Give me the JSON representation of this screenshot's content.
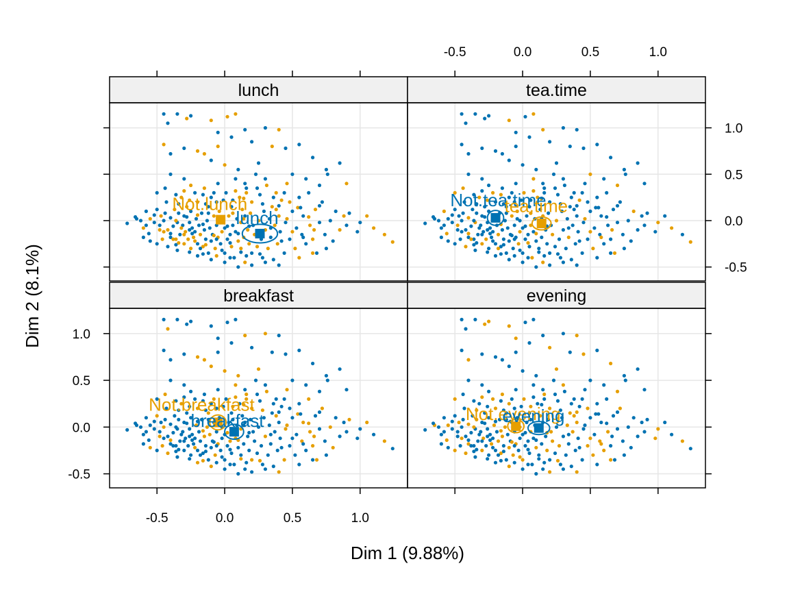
{
  "chart_data": {
    "type": "scatter",
    "xlabel": "Dim 1 (9.88%)",
    "ylabel": "Dim 2 (8.1%)",
    "xlim": [
      -0.85,
      1.35
    ],
    "ylim": [
      -0.65,
      1.27
    ],
    "x_ticks": [
      -0.5,
      0.0,
      0.5,
      1.0
    ],
    "x_tick_labels": [
      "-0.5",
      "0.0",
      "0.5",
      "1.0"
    ],
    "y_ticks": [
      -0.5,
      0.0,
      0.5,
      1.0
    ],
    "y_tick_labels": [
      "-0.5",
      "0.0",
      "0.5",
      "1.0"
    ],
    "grid": true,
    "layout": "2x2 lattice panels",
    "colors": {
      "yes": "#0072b2",
      "no": "#e69f00"
    },
    "panels": [
      {
        "name": "lunch",
        "position": "top-left",
        "categories": [
          {
            "label": "Not.lunch",
            "color": "#e69f00",
            "x": -0.03,
            "y": 0.01,
            "ellipse_rx": 0.03,
            "ellipse_ry": 0.04,
            "label_dx": -0.08,
            "label_dy": 0.17
          },
          {
            "label": "lunch",
            "color": "#0072b2",
            "x": 0.26,
            "y": -0.14,
            "ellipse_rx": 0.13,
            "ellipse_ry": 0.1,
            "label_dx": -0.02,
            "label_dy": 0.17
          }
        ],
        "yes_fraction": 0.14
      },
      {
        "name": "tea.time",
        "position": "top-right",
        "categories": [
          {
            "label": "Not.tea.time",
            "color": "#0072b2",
            "x": -0.2,
            "y": 0.03,
            "ellipse_rx": 0.06,
            "ellipse_ry": 0.08,
            "label_dx": 0.02,
            "label_dy": 0.19
          },
          {
            "label": "tea.time",
            "color": "#e69f00",
            "x": 0.14,
            "y": -0.03,
            "ellipse_rx": 0.07,
            "ellipse_ry": 0.07,
            "label_dx": -0.04,
            "label_dy": 0.19
          }
        ],
        "yes_fraction": 0.58
      },
      {
        "name": "breakfast",
        "position": "bottom-left",
        "categories": [
          {
            "label": "Not.breakfast",
            "color": "#e69f00",
            "x": -0.05,
            "y": 0.05,
            "ellipse_rx": 0.06,
            "ellipse_ry": 0.08,
            "label_dx": -0.12,
            "label_dy": 0.19
          },
          {
            "label": "breakfast",
            "color": "#0072b2",
            "x": 0.07,
            "y": -0.05,
            "ellipse_rx": 0.07,
            "ellipse_ry": 0.08,
            "label_dx": -0.05,
            "label_dy": 0.12
          }
        ],
        "yes_fraction": 0.45
      },
      {
        "name": "evening",
        "position": "bottom-right",
        "categories": [
          {
            "label": "Not.evening",
            "color": "#e69f00",
            "x": -0.05,
            "y": 0.01,
            "ellipse_rx": 0.06,
            "ellipse_ry": 0.07,
            "label_dx": -0.02,
            "label_dy": 0.13
          },
          {
            "label": "evening",
            "color": "#0072b2",
            "x": 0.12,
            "y": -0.01,
            "ellipse_rx": 0.08,
            "ellipse_ry": 0.07,
            "label_dx": -0.04,
            "label_dy": 0.13
          }
        ],
        "yes_fraction": 0.4
      }
    ],
    "points": [
      [
        -0.72,
        -0.03
      ],
      [
        -0.65,
        0.02
      ],
      [
        -0.6,
        -0.08
      ],
      [
        -0.58,
        0.1
      ],
      [
        -0.55,
        0.02
      ],
      [
        -0.52,
        -0.02
      ],
      [
        -0.5,
        0.12
      ],
      [
        -0.48,
        -0.05
      ],
      [
        -0.47,
        0.05
      ],
      [
        -0.45,
        -0.12
      ],
      [
        -0.45,
        0.0
      ],
      [
        -0.43,
        0.2
      ],
      [
        -0.42,
        -0.1
      ],
      [
        -0.4,
        0.03
      ],
      [
        -0.4,
        -0.18
      ],
      [
        -0.38,
        -0.06
      ],
      [
        -0.37,
        0.12
      ],
      [
        -0.36,
        -0.2
      ],
      [
        -0.35,
        -0.02
      ],
      [
        -0.34,
        0.08
      ],
      [
        -0.33,
        -0.15
      ],
      [
        -0.32,
        0.25
      ],
      [
        -0.31,
        -0.05
      ],
      [
        -0.3,
        -0.25
      ],
      [
        -0.3,
        0.05
      ],
      [
        -0.29,
        -0.12
      ],
      [
        -0.28,
        0.15
      ],
      [
        -0.27,
        -0.2
      ],
      [
        -0.26,
        -0.02
      ],
      [
        -0.25,
        -0.3
      ],
      [
        -0.25,
        0.1
      ],
      [
        -0.24,
        -0.08
      ],
      [
        -0.23,
        -0.18
      ],
      [
        -0.22,
        0.3
      ],
      [
        -0.22,
        -0.12
      ],
      [
        -0.21,
        0.02
      ],
      [
        -0.2,
        -0.25
      ],
      [
        -0.2,
        0.2
      ],
      [
        -0.19,
        -0.05
      ],
      [
        -0.18,
        -0.15
      ],
      [
        -0.17,
        0.08
      ],
      [
        -0.16,
        -0.28
      ],
      [
        -0.15,
        -0.1
      ],
      [
        -0.15,
        0.35
      ],
      [
        -0.14,
        -0.2
      ],
      [
        -0.13,
        0.0
      ],
      [
        -0.12,
        -0.35
      ],
      [
        -0.12,
        0.15
      ],
      [
        -0.11,
        -0.08
      ],
      [
        -0.1,
        -0.22
      ],
      [
        -0.1,
        0.25
      ],
      [
        -0.09,
        -0.15
      ],
      [
        -0.08,
        0.05
      ],
      [
        -0.07,
        -0.3
      ],
      [
        -0.06,
        -0.05
      ],
      [
        -0.05,
        0.4
      ],
      [
        -0.05,
        -0.18
      ],
      [
        -0.04,
        0.1
      ],
      [
        -0.03,
        -0.25
      ],
      [
        -0.02,
        0.0
      ],
      [
        -0.02,
        -0.12
      ],
      [
        -0.01,
        0.22
      ],
      [
        0.0,
        -0.35
      ],
      [
        0.0,
        -0.08
      ],
      [
        0.01,
        0.3
      ],
      [
        0.02,
        -0.2
      ],
      [
        0.03,
        0.05
      ],
      [
        0.04,
        -0.15
      ],
      [
        0.05,
        -0.28
      ],
      [
        0.05,
        0.15
      ],
      [
        0.06,
        -0.05
      ],
      [
        0.07,
        -0.4
      ],
      [
        0.08,
        0.45
      ],
      [
        0.08,
        -0.12
      ],
      [
        0.09,
        0.02
      ],
      [
        0.1,
        -0.22
      ],
      [
        0.11,
        0.25
      ],
      [
        0.12,
        -0.3
      ],
      [
        0.12,
        -0.02
      ],
      [
        0.13,
        0.12
      ],
      [
        0.14,
        -0.18
      ],
      [
        0.15,
        -0.45
      ],
      [
        0.15,
        0.05
      ],
      [
        0.16,
        0.35
      ],
      [
        0.17,
        -0.1
      ],
      [
        0.18,
        -0.25
      ],
      [
        0.19,
        0.08
      ],
      [
        0.2,
        -0.35
      ],
      [
        0.2,
        0.2
      ],
      [
        0.21,
        -0.05
      ],
      [
        0.22,
        -0.15
      ],
      [
        0.23,
        0.5
      ],
      [
        0.24,
        -0.28
      ],
      [
        0.25,
        0.0
      ],
      [
        0.26,
        0.28
      ],
      [
        0.27,
        -0.2
      ],
      [
        0.28,
        -0.4
      ],
      [
        0.29,
        0.1
      ],
      [
        0.3,
        -0.1
      ],
      [
        0.31,
        0.38
      ],
      [
        0.32,
        -0.3
      ],
      [
        0.33,
        0.02
      ],
      [
        0.34,
        -0.18
      ],
      [
        0.35,
        0.15
      ],
      [
        0.36,
        -0.42
      ],
      [
        0.37,
        -0.05
      ],
      [
        0.38,
        0.3
      ],
      [
        0.39,
        -0.25
      ],
      [
        0.4,
        0.05
      ],
      [
        0.41,
        -0.12
      ],
      [
        0.42,
        0.22
      ],
      [
        0.44,
        -0.35
      ],
      [
        0.45,
        -0.02
      ],
      [
        0.46,
        0.4
      ],
      [
        0.48,
        -0.2
      ],
      [
        0.5,
        0.1
      ],
      [
        0.52,
        -0.3
      ],
      [
        0.53,
        -0.08
      ],
      [
        0.55,
        0.25
      ],
      [
        0.57,
        -0.15
      ],
      [
        0.58,
        0.05
      ],
      [
        0.6,
        -0.25
      ],
      [
        0.62,
        0.3
      ],
      [
        0.63,
        -0.05
      ],
      [
        0.65,
        -0.2
      ],
      [
        0.67,
        0.12
      ],
      [
        0.68,
        -0.35
      ],
      [
        0.7,
        -0.02
      ],
      [
        0.72,
        0.2
      ],
      [
        0.74,
        -0.15
      ],
      [
        0.76,
        0.5
      ],
      [
        0.78,
        0.0
      ],
      [
        0.8,
        -0.22
      ],
      [
        0.82,
        0.1
      ],
      [
        0.85,
        -0.1
      ],
      [
        0.88,
        0.05
      ],
      [
        0.9,
        -0.05
      ],
      [
        0.92,
        0.08
      ],
      [
        0.98,
        -0.12
      ],
      [
        1.0,
        -0.02
      ],
      [
        1.05,
        0.05
      ],
      [
        1.1,
        -0.08
      ],
      [
        1.18,
        -0.15
      ],
      [
        1.24,
        -0.23
      ],
      [
        -0.6,
        -0.18
      ],
      [
        -0.55,
        -0.22
      ],
      [
        -0.5,
        -0.25
      ],
      [
        -0.42,
        -0.28
      ],
      [
        -0.35,
        -0.32
      ],
      [
        -0.3,
        -0.15
      ],
      [
        -0.45,
        1.15
      ],
      [
        -0.42,
        1.05
      ],
      [
        -0.35,
        1.15
      ],
      [
        -0.28,
        1.1
      ],
      [
        -0.25,
        1.13
      ],
      [
        -0.1,
        1.08
      ],
      [
        0.02,
        1.12
      ],
      [
        0.08,
        1.15
      ],
      [
        0.15,
        0.98
      ],
      [
        -0.05,
        0.95
      ],
      [
        0.3,
        1.0
      ],
      [
        0.4,
        0.98
      ],
      [
        -0.45,
        0.82
      ],
      [
        -0.4,
        0.72
      ],
      [
        -0.3,
        0.78
      ],
      [
        -0.2,
        0.75
      ],
      [
        -0.15,
        0.72
      ],
      [
        -0.05,
        0.8
      ],
      [
        0.05,
        0.9
      ],
      [
        0.2,
        0.85
      ],
      [
        0.35,
        0.8
      ],
      [
        0.45,
        0.78
      ],
      [
        0.55,
        0.82
      ],
      [
        0.65,
        0.68
      ],
      [
        0.75,
        0.55
      ],
      [
        0.85,
        0.62
      ],
      [
        0.0,
        0.6
      ],
      [
        0.1,
        0.55
      ],
      [
        -0.1,
        0.65
      ],
      [
        0.25,
        0.62
      ],
      [
        0.5,
        0.5
      ],
      [
        0.6,
        0.45
      ],
      [
        0.3,
        0.45
      ],
      [
        -0.3,
        0.45
      ],
      [
        -0.4,
        0.5
      ],
      [
        0.15,
        0.4
      ],
      [
        -0.25,
        0.38
      ],
      [
        0.7,
        0.38
      ],
      [
        0.9,
        0.4
      ],
      [
        0.08,
        0.32
      ],
      [
        -0.2,
        -0.38
      ],
      [
        -0.1,
        -0.42
      ],
      [
        0.0,
        -0.45
      ],
      [
        0.1,
        -0.5
      ],
      [
        0.2,
        -0.48
      ],
      [
        0.3,
        -0.45
      ],
      [
        0.4,
        -0.48
      ],
      [
        0.55,
        -0.4
      ],
      [
        0.65,
        -0.35
      ],
      [
        0.75,
        -0.3
      ],
      [
        -0.62,
        0.0
      ],
      [
        -0.58,
        -0.05
      ],
      [
        -0.52,
        0.06
      ],
      [
        -0.48,
        -0.1
      ],
      [
        -0.44,
        0.08
      ],
      [
        -0.4,
        -0.14
      ],
      [
        -0.36,
        0.0
      ],
      [
        -0.32,
        -0.08
      ],
      [
        -0.28,
        0.04
      ],
      [
        -0.24,
        -0.14
      ],
      [
        -0.2,
        0.06
      ],
      [
        -0.16,
        -0.04
      ],
      [
        -0.12,
        0.08
      ],
      [
        -0.08,
        -0.16
      ],
      [
        -0.04,
        0.02
      ],
      [
        0.02,
        -0.06
      ],
      [
        0.06,
        0.08
      ],
      [
        0.1,
        -0.14
      ],
      [
        0.14,
        0.02
      ],
      [
        0.18,
        -0.06
      ],
      [
        -0.38,
        -0.2
      ],
      [
        -0.34,
        -0.24
      ],
      [
        -0.26,
        -0.1
      ],
      [
        -0.22,
        -0.22
      ],
      [
        -0.18,
        -0.3
      ],
      [
        -0.14,
        -0.26
      ],
      [
        -0.06,
        -0.2
      ],
      [
        -0.02,
        -0.32
      ],
      [
        0.04,
        -0.24
      ],
      [
        0.12,
        -0.34
      ],
      [
        -0.66,
        0.04
      ],
      [
        -0.56,
        -0.14
      ],
      [
        -0.46,
        -0.2
      ],
      [
        -0.36,
        -0.26
      ],
      [
        -0.26,
        -0.34
      ],
      [
        -0.16,
        -0.36
      ],
      [
        -0.06,
        -0.38
      ],
      [
        0.04,
        -0.4
      ],
      [
        0.16,
        -0.38
      ],
      [
        0.26,
        -0.36
      ],
      [
        0.34,
        -0.08
      ],
      [
        0.38,
        0.12
      ],
      [
        0.42,
        -0.22
      ],
      [
        0.46,
        0.02
      ],
      [
        0.5,
        -0.12
      ],
      [
        0.54,
        0.14
      ],
      [
        0.58,
        -0.18
      ],
      [
        0.62,
        0.04
      ],
      [
        0.66,
        -0.1
      ],
      [
        0.7,
        0.16
      ],
      [
        -0.5,
        0.3
      ],
      [
        -0.44,
        0.35
      ],
      [
        -0.36,
        0.28
      ],
      [
        -0.3,
        0.32
      ],
      [
        -0.16,
        0.28
      ],
      [
        -0.08,
        0.3
      ],
      [
        0.16,
        0.3
      ],
      [
        0.24,
        0.35
      ],
      [
        0.36,
        0.25
      ],
      [
        0.44,
        0.3
      ],
      [
        -0.34,
        0.18
      ],
      [
        -0.26,
        0.22
      ],
      [
        -0.14,
        0.18
      ],
      [
        -0.06,
        0.2
      ],
      [
        0.06,
        0.22
      ],
      [
        0.14,
        0.24
      ],
      [
        0.28,
        0.18
      ],
      [
        0.4,
        0.16
      ],
      [
        0.48,
        0.2
      ],
      [
        0.56,
        0.14
      ]
    ]
  }
}
